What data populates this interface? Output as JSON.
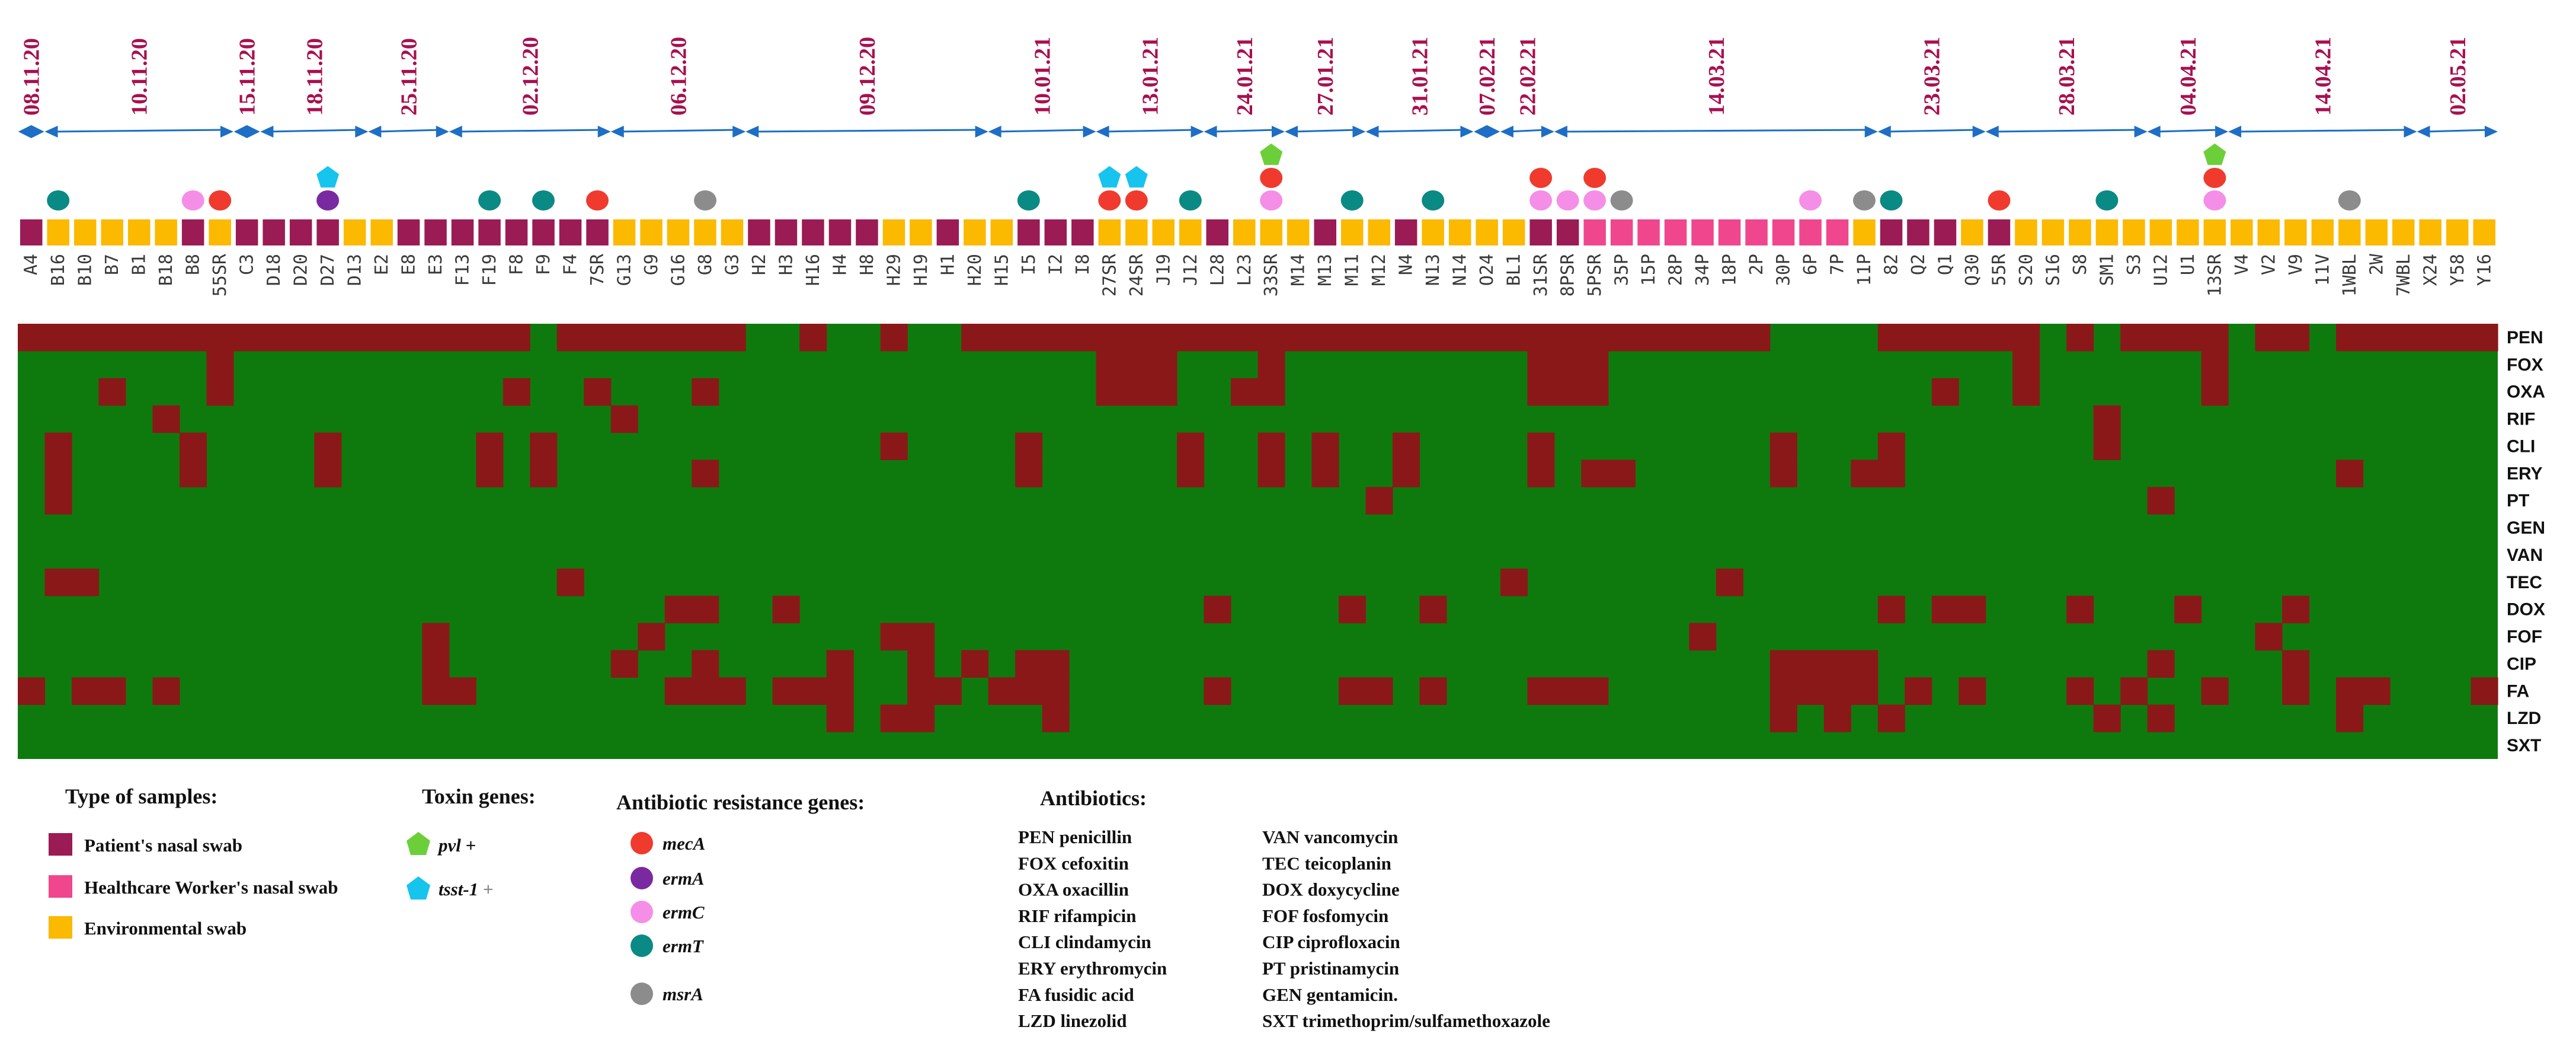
{
  "chart_data": {
    "type": "heatmap",
    "colors": {
      "resistant": "#8b1818",
      "susceptible": "#0e7a0e",
      "patient": "#9b1b54",
      "hcw": "#f0468e",
      "environmental": "#fbb900",
      "timeline": "#1d6ec4",
      "date_text": "#a8104f",
      "pvl": "#6ccf3a",
      "tsst1": "#16c4ee",
      "mecA": "#f03a2e",
      "ermA": "#7a2aa0",
      "ermC": "#f58ee6",
      "ermT": "#0a8a84",
      "msrA": "#8c8c8c"
    },
    "antibiotics": [
      "PEN",
      "FOX",
      "OXA",
      "RIF",
      "CLI",
      "ERY",
      "PT",
      "GEN",
      "VAN",
      "TEC",
      "DOX",
      "FOF",
      "CIP",
      "FA",
      "LZD",
      "SXT"
    ],
    "sample_ids": [
      "A4",
      "B16",
      "B10",
      "B7",
      "B1",
      "B18",
      "B8",
      "55SR",
      "C3",
      "D18",
      "D20",
      "D27",
      "D13",
      "E2",
      "E8",
      "E3",
      "F13",
      "F19",
      "F8",
      "F9",
      "F4",
      "7SR",
      "G13",
      "G9",
      "G16",
      "G8",
      "G3",
      "H2",
      "H3",
      "H16",
      "H4",
      "H8",
      "H29",
      "H19",
      "H1",
      "H20",
      "H15",
      "I5",
      "I2",
      "I8",
      "27SR",
      "24SR",
      "J19",
      "J12",
      "L28",
      "L23",
      "33SR",
      "M14",
      "M13",
      "M11",
      "M12",
      "N4",
      "N13",
      "N14",
      "O24",
      "BL1",
      "31SR",
      "8PSR",
      "5PSR",
      "35P",
      "15P",
      "28P",
      "34P",
      "18P",
      "2P",
      "30P",
      "6P",
      "7P",
      "11P",
      "82",
      "Q2",
      "Q1",
      "Q30",
      "55R",
      "S20",
      "S16",
      "S8",
      "SM1",
      "S3",
      "U12",
      "U1",
      "13SR",
      "V4",
      "V2",
      "V9",
      "11V",
      "1WBL",
      "2W",
      "7WBL",
      "X24",
      "Y58",
      "Y16"
    ],
    "sample_types": [
      "P",
      "E",
      "E",
      "E",
      "E",
      "E",
      "P",
      "E",
      "P",
      "P",
      "P",
      "P",
      "E",
      "E",
      "P",
      "P",
      "P",
      "P",
      "P",
      "P",
      "P",
      "P",
      "E",
      "E",
      "E",
      "E",
      "E",
      "P",
      "P",
      "P",
      "P",
      "P",
      "E",
      "E",
      "P",
      "E",
      "E",
      "P",
      "P",
      "P",
      "E",
      "E",
      "E",
      "E",
      "P",
      "E",
      "E",
      "E",
      "P",
      "E",
      "E",
      "P",
      "E",
      "E",
      "E",
      "E",
      "P",
      "P",
      "H",
      "H",
      "H",
      "H",
      "H",
      "H",
      "H",
      "H",
      "H",
      "H",
      "E",
      "P",
      "P",
      "P",
      "E",
      "P",
      "E",
      "E",
      "E",
      "E",
      "E",
      "E",
      "E",
      "E",
      "E",
      "E",
      "E",
      "E",
      "E",
      "E",
      "E",
      "E",
      "E",
      "E"
    ],
    "dates": [
      {
        "label": "08.11.20",
        "start": 0,
        "end": 0
      },
      {
        "label": "10.11.20",
        "start": 1,
        "end": 7
      },
      {
        "label": "15.11.20",
        "start": 8,
        "end": 8
      },
      {
        "label": "18.11.20",
        "start": 9,
        "end": 12
      },
      {
        "label": "25.11.20",
        "start": 13,
        "end": 15
      },
      {
        "label": "02.12.20",
        "start": 16,
        "end": 21
      },
      {
        "label": "06.12.20",
        "start": 22,
        "end": 26
      },
      {
        "label": "09.12.20",
        "start": 27,
        "end": 35
      },
      {
        "label": "10.01.21",
        "start": 36,
        "end": 39
      },
      {
        "label": "13.01.21",
        "start": 40,
        "end": 43
      },
      {
        "label": "24.01.21",
        "start": 44,
        "end": 46
      },
      {
        "label": "27.01.21",
        "start": 47,
        "end": 49
      },
      {
        "label": "31.01.21",
        "start": 50,
        "end": 53
      },
      {
        "label": "07.02.21",
        "start": 54,
        "end": 54
      },
      {
        "label": "22.02.21",
        "start": 55,
        "end": 56
      },
      {
        "label": "14.03.21",
        "start": 57,
        "end": 68
      },
      {
        "label": "23.03.21",
        "start": 69,
        "end": 72
      },
      {
        "label": "28.03.21",
        "start": 73,
        "end": 78
      },
      {
        "label": "04.04.21",
        "start": 79,
        "end": 81
      },
      {
        "label": "14.04.21",
        "start": 82,
        "end": 88
      },
      {
        "label": "02.05.21",
        "start": 89,
        "end": 91
      }
    ],
    "genes": [
      {
        "col": 1,
        "genes": [
          "ermT"
        ]
      },
      {
        "col": 6,
        "genes": [
          "ermC"
        ]
      },
      {
        "col": 7,
        "genes": [
          "mecA"
        ]
      },
      {
        "col": 11,
        "genes": [
          "tsst1",
          "ermA"
        ]
      },
      {
        "col": 17,
        "genes": [
          "ermT"
        ]
      },
      {
        "col": 19,
        "genes": [
          "ermT"
        ]
      },
      {
        "col": 21,
        "genes": [
          "mecA"
        ]
      },
      {
        "col": 25,
        "genes": [
          "msrA"
        ]
      },
      {
        "col": 37,
        "genes": [
          "ermT"
        ]
      },
      {
        "col": 40,
        "genes": [
          "tsst1",
          "mecA"
        ]
      },
      {
        "col": 41,
        "genes": [
          "tsst1",
          "mecA"
        ]
      },
      {
        "col": 43,
        "genes": [
          "ermT"
        ]
      },
      {
        "col": 46,
        "genes": [
          "pvl",
          "mecA",
          "ermC"
        ]
      },
      {
        "col": 49,
        "genes": [
          "ermT"
        ]
      },
      {
        "col": 52,
        "genes": [
          "ermT"
        ]
      },
      {
        "col": 56,
        "genes": [
          "mecA",
          "ermC"
        ]
      },
      {
        "col": 57,
        "genes": [
          "ermC"
        ]
      },
      {
        "col": 58,
        "genes": [
          "mecA",
          "ermC"
        ]
      },
      {
        "col": 59,
        "genes": [
          "msrA"
        ]
      },
      {
        "col": 66,
        "genes": [
          "ermC"
        ]
      },
      {
        "col": 68,
        "genes": [
          "msrA"
        ]
      },
      {
        "col": 69,
        "genes": [
          "ermT"
        ]
      },
      {
        "col": 73,
        "genes": [
          "mecA"
        ]
      },
      {
        "col": 77,
        "genes": [
          "ermT"
        ]
      },
      {
        "col": 81,
        "genes": [
          "pvl",
          "mecA",
          "ermC"
        ]
      },
      {
        "col": 86,
        "genes": [
          "msrA"
        ]
      }
    ],
    "resistance": {
      "PEN": [
        0,
        1,
        2,
        3,
        4,
        5,
        6,
        7,
        8,
        9,
        10,
        11,
        12,
        13,
        14,
        15,
        16,
        17,
        18,
        20,
        21,
        22,
        23,
        24,
        25,
        26,
        29,
        32,
        35,
        36,
        37,
        38,
        39,
        40,
        41,
        42,
        43,
        44,
        45,
        46,
        47,
        48,
        49,
        50,
        51,
        52,
        53,
        54,
        55,
        56,
        57,
        58,
        59,
        60,
        61,
        62,
        63,
        64,
        69,
        70,
        71,
        72,
        73,
        74,
        76,
        78,
        79,
        80,
        81,
        83,
        84,
        86,
        87,
        88,
        89,
        90,
        91
      ],
      "FOX": [
        7,
        40,
        41,
        42,
        46,
        56,
        57,
        58,
        74,
        81
      ],
      "OXA": [
        3,
        7,
        18,
        21,
        25,
        40,
        41,
        42,
        45,
        46,
        56,
        57,
        58,
        71,
        74,
        81
      ],
      "RIF": [
        5,
        22,
        77
      ],
      "CLI": [
        1,
        6,
        11,
        17,
        19,
        32,
        37,
        43,
        46,
        48,
        51,
        56,
        65,
        69,
        77
      ],
      "ERY": [
        1,
        6,
        11,
        17,
        19,
        25,
        37,
        43,
        46,
        48,
        51,
        56,
        58,
        59,
        65,
        68,
        69,
        86
      ],
      "PT": [
        1,
        50,
        79
      ],
      "GEN": [],
      "VAN": [],
      "TEC": [
        1,
        2,
        20,
        55,
        63
      ],
      "DOX": [
        24,
        25,
        28,
        44,
        49,
        52,
        69,
        71,
        72,
        76,
        80,
        84
      ],
      "FOF": [
        15,
        23,
        32,
        33,
        62,
        83
      ],
      "CIP": [
        15,
        22,
        25,
        30,
        33,
        35,
        37,
        38,
        65,
        66,
        67,
        68,
        79,
        84
      ],
      "FA": [
        0,
        2,
        3,
        5,
        15,
        16,
        24,
        25,
        26,
        28,
        29,
        30,
        33,
        34,
        36,
        37,
        38,
        44,
        49,
        50,
        52,
        56,
        57,
        58,
        65,
        66,
        67,
        68,
        70,
        72,
        76,
        78,
        81,
        84,
        86,
        87,
        91
      ],
      "LZD": [
        30,
        32,
        33,
        38,
        65,
        67,
        69,
        77,
        79,
        86
      ]
    },
    "legend": {
      "sample_types_title": "Type of samples:",
      "sample_types": [
        {
          "key": "P",
          "label": "Patient's nasal swab"
        },
        {
          "key": "H",
          "label": "Healthcare Worker's nasal swab"
        },
        {
          "key": "E",
          "label": "Environmental swab"
        }
      ],
      "toxin_title": "Toxin genes:",
      "toxins": [
        {
          "key": "pvl",
          "name": "pvl",
          "suffix": " +"
        },
        {
          "key": "tsst1",
          "name": "tsst-1",
          "suffix": " +"
        }
      ],
      "arg_title": "Antibiotic resistance genes:",
      "args": [
        "mecA",
        "ermA",
        "ermC",
        "ermT",
        "msrA"
      ],
      "antibiotics_title": "Antibiotics:",
      "antibiotics_col1": [
        "PEN penicillin",
        "FOX cefoxitin",
        "OXA oxacillin",
        "RIF rifampicin",
        "CLI clindamycin",
        "ERY erythromycin",
        "FA fusidic acid",
        "LZD linezolid"
      ],
      "antibiotics_col2": [
        "VAN vancomycin",
        "TEC teicoplanin",
        "DOX doxycycline",
        "FOF fosfomycin",
        "CIP ciprofloxacin",
        "PT pristinamycin",
        "GEN gentamicin.",
        "SXT trimethoprim/sulfamethoxazole"
      ]
    }
  }
}
